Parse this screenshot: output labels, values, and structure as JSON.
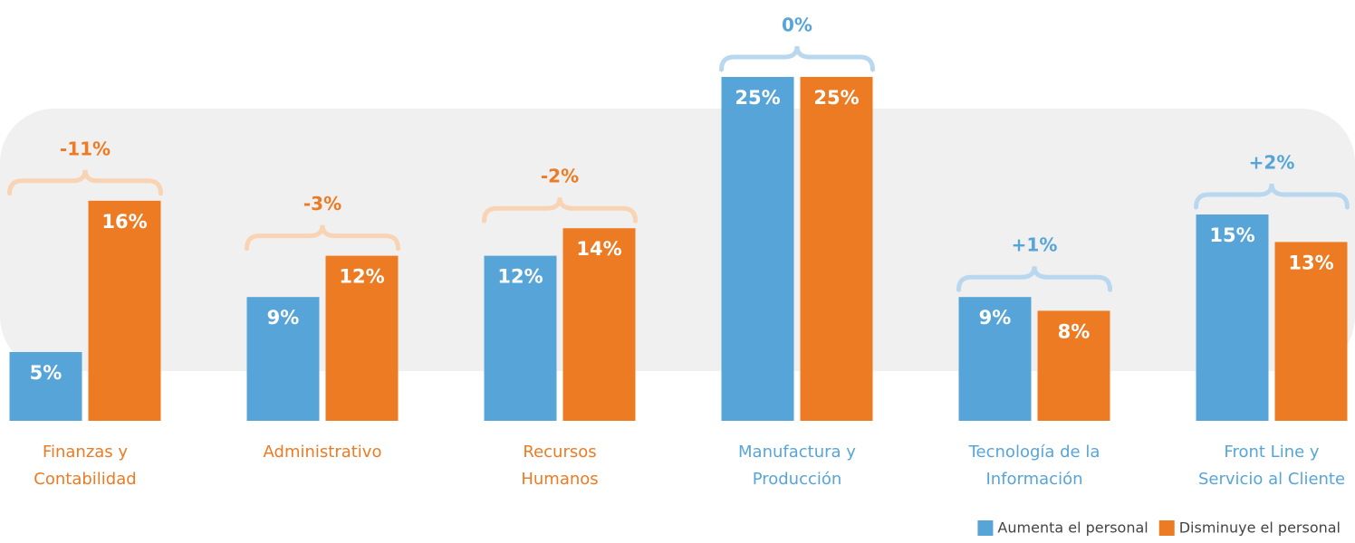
{
  "chart_data": {
    "type": "bar",
    "categories": [
      [
        "Finanzas y",
        "Contabilidad"
      ],
      [
        "Administrativo"
      ],
      [
        "Recursos",
        "Humanos"
      ],
      [
        "Manufactura y",
        "Producción"
      ],
      [
        "Tecnología de la",
        "Información"
      ],
      [
        "Front Line y",
        "Servicio al Cliente"
      ]
    ],
    "series": [
      {
        "name": "Aumenta el personal",
        "color": "#57a5d8",
        "values": [
          5,
          9,
          12,
          25,
          9,
          15
        ],
        "value_labels": [
          "5%",
          "9%",
          "12%",
          "25%",
          "9%",
          "15%"
        ]
      },
      {
        "name": "Disminuye el personal",
        "color": "#ec7b23",
        "values": [
          16,
          12,
          14,
          25,
          8,
          13
        ],
        "value_labels": [
          "16%",
          "12%",
          "14%",
          "25%",
          "8%",
          "13%"
        ]
      }
    ],
    "differences": [
      -11,
      -3,
      -2,
      0,
      1,
      2
    ],
    "difference_labels": [
      "-11%",
      "-3%",
      "-2%",
      "0%",
      "+1%",
      "+2%"
    ],
    "ylim": [
      0,
      25
    ],
    "legend": "bottom-right"
  }
}
